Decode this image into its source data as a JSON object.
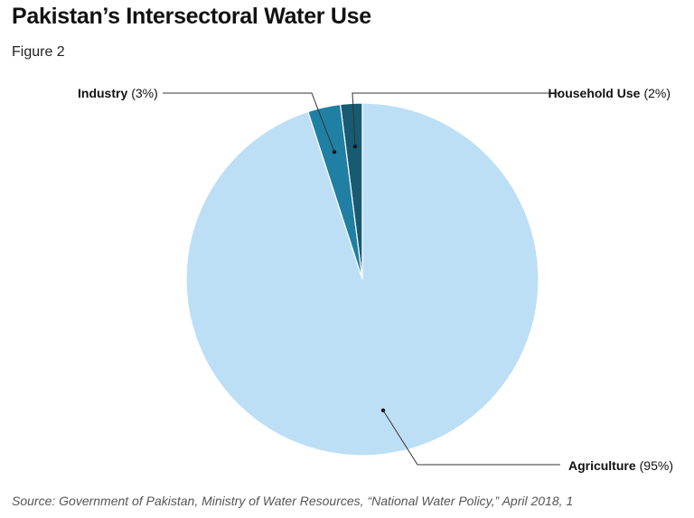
{
  "title": "Pakistan’s Intersectoral Water Use",
  "subtitle": "Figure 2",
  "source": "Source: Government of Pakistan, Ministry of Water Resources, “National Water Policy,” April 2018, 1",
  "chart_data": {
    "type": "pie",
    "title": "Pakistan’s Intersectoral Water Use",
    "slices": [
      {
        "name": "Agriculture",
        "value": 95,
        "value_label": "(95%)",
        "color": "#bddff6"
      },
      {
        "name": "Industry",
        "value": 3,
        "value_label": "(3%)",
        "color": "#2080a3"
      },
      {
        "name": "Household Use",
        "value": 2,
        "value_label": "(2%)",
        "color": "#175a72"
      }
    ],
    "start": "12 o'clock",
    "direction": "counterclockwise"
  }
}
